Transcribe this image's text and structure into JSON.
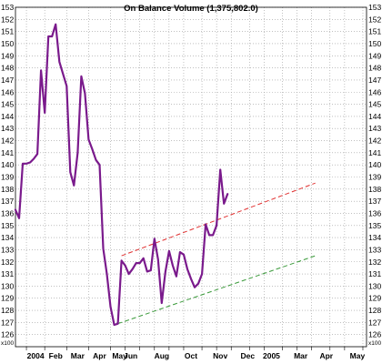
{
  "chart_data": {
    "type": "line",
    "title": "On Balance Volume (1,375,802.0)",
    "multiplier_label": "x100",
    "ylim": [
      125,
      153
    ],
    "y_ticks": [
      126,
      127,
      128,
      129,
      130,
      131,
      132,
      133,
      134,
      135,
      136,
      137,
      138,
      139,
      140,
      141,
      142,
      143,
      144,
      145,
      146,
      147,
      148,
      149,
      150,
      151,
      152,
      153
    ],
    "x_labels": [
      "2004",
      "Feb",
      "Mar",
      "Apr",
      "May",
      "Jun",
      "Aug",
      "Oct",
      "Nov",
      "Dec",
      "2005",
      "Mar",
      "Apr",
      "May"
    ],
    "x_label_weeks": [
      5.5,
      11,
      17,
      23,
      28.5,
      31.5,
      40,
      48,
      56,
      63.5,
      70,
      78,
      85,
      93.5
    ],
    "x_gridline_weeks": [
      3,
      8,
      14,
      20,
      26,
      30,
      34,
      38,
      42,
      46,
      51,
      55,
      59,
      64,
      68,
      73,
      77,
      81,
      86,
      90,
      95
    ],
    "x_range_weeks": [
      0,
      96
    ],
    "grid": true,
    "series": [
      {
        "color": "#7a1a8c",
        "values": [
          [
            0,
            136.3
          ],
          [
            1,
            135.6
          ],
          [
            2,
            140.1
          ],
          [
            3,
            140.1
          ],
          [
            4,
            140.2
          ],
          [
            5,
            140.5
          ],
          [
            6,
            140.9
          ],
          [
            7,
            147.8
          ],
          [
            8,
            144.3
          ],
          [
            9,
            150.6
          ],
          [
            10,
            150.6
          ],
          [
            11,
            151.6
          ],
          [
            12,
            148.5
          ],
          [
            13,
            147.5
          ],
          [
            14,
            146.5
          ],
          [
            15,
            139.4
          ],
          [
            16,
            138.3
          ],
          [
            17,
            141.0
          ],
          [
            18,
            147.3
          ],
          [
            19,
            145.9
          ],
          [
            20,
            142.1
          ],
          [
            21,
            141.3
          ],
          [
            22,
            140.4
          ],
          [
            23,
            140.0
          ],
          [
            24,
            133.1
          ],
          [
            25,
            131.0
          ],
          [
            26,
            128.3
          ],
          [
            27,
            126.8
          ],
          [
            28,
            126.9
          ],
          [
            29,
            132.1
          ],
          [
            30,
            131.7
          ],
          [
            31,
            131.0
          ],
          [
            32,
            131.4
          ],
          [
            33,
            131.9
          ],
          [
            34,
            131.9
          ],
          [
            35,
            132.3
          ],
          [
            36,
            131.2
          ],
          [
            37,
            131.3
          ],
          [
            38,
            133.9
          ],
          [
            39,
            132.2
          ],
          [
            40,
            128.6
          ],
          [
            41,
            131.2
          ],
          [
            42,
            132.9
          ],
          [
            43,
            131.7
          ],
          [
            44,
            130.8
          ],
          [
            45,
            132.8
          ],
          [
            46,
            132.6
          ],
          [
            47,
            131.4
          ],
          [
            48,
            130.6
          ],
          [
            49,
            129.9
          ],
          [
            50,
            130.2
          ],
          [
            51,
            131.0
          ],
          [
            52,
            135.1
          ],
          [
            53,
            134.2
          ],
          [
            54,
            134.2
          ],
          [
            55,
            135.0
          ],
          [
            56,
            139.6
          ],
          [
            57,
            136.8
          ],
          [
            58,
            137.6
          ]
        ]
      }
    ],
    "trend_lines": [
      {
        "color": "#e03030",
        "from": [
          29,
          132.5
        ],
        "to": [
          82,
          138.5
        ]
      },
      {
        "color": "#3a9a3a",
        "from": [
          28,
          126.9
        ],
        "to": [
          82,
          132.5
        ]
      }
    ]
  }
}
